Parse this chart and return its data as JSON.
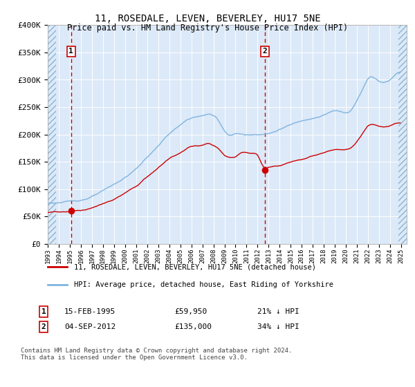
{
  "title": "11, ROSEDALE, LEVEN, BEVERLEY, HU17 5NE",
  "subtitle": "Price paid vs. HM Land Registry's House Price Index (HPI)",
  "ylim": [
    0,
    400000
  ],
  "yticks": [
    0,
    50000,
    100000,
    150000,
    200000,
    250000,
    300000,
    350000,
    400000
  ],
  "ytick_labels": [
    "£0",
    "£50K",
    "£100K",
    "£150K",
    "£200K",
    "£250K",
    "£300K",
    "£350K",
    "£400K"
  ],
  "xlim_start": 1993.0,
  "xlim_end": 2025.5,
  "background_color": "#dce9f8",
  "grid_color": "#ffffff",
  "sale1_year": 1995.12,
  "sale1_price": 59950,
  "sale2_year": 2012.67,
  "sale2_price": 135000,
  "legend_house_label": "11, ROSEDALE, LEVEN, BEVERLEY, HU17 5NE (detached house)",
  "legend_hpi_label": "HPI: Average price, detached house, East Riding of Yorkshire",
  "note1_date": "15-FEB-1995",
  "note1_price": "£59,950",
  "note1_hpi": "21% ↓ HPI",
  "note2_date": "04-SEP-2012",
  "note2_price": "£135,000",
  "note2_hpi": "34% ↓ HPI",
  "copyright_text": "Contains HM Land Registry data © Crown copyright and database right 2024.\nThis data is licensed under the Open Government Licence v3.0.",
  "house_color": "#cc0000",
  "hpi_color": "#7eb4e0",
  "sale_marker_color": "#cc0000",
  "dashed_line_color": "#cc0000",
  "box_edge_color": "#cc0000"
}
